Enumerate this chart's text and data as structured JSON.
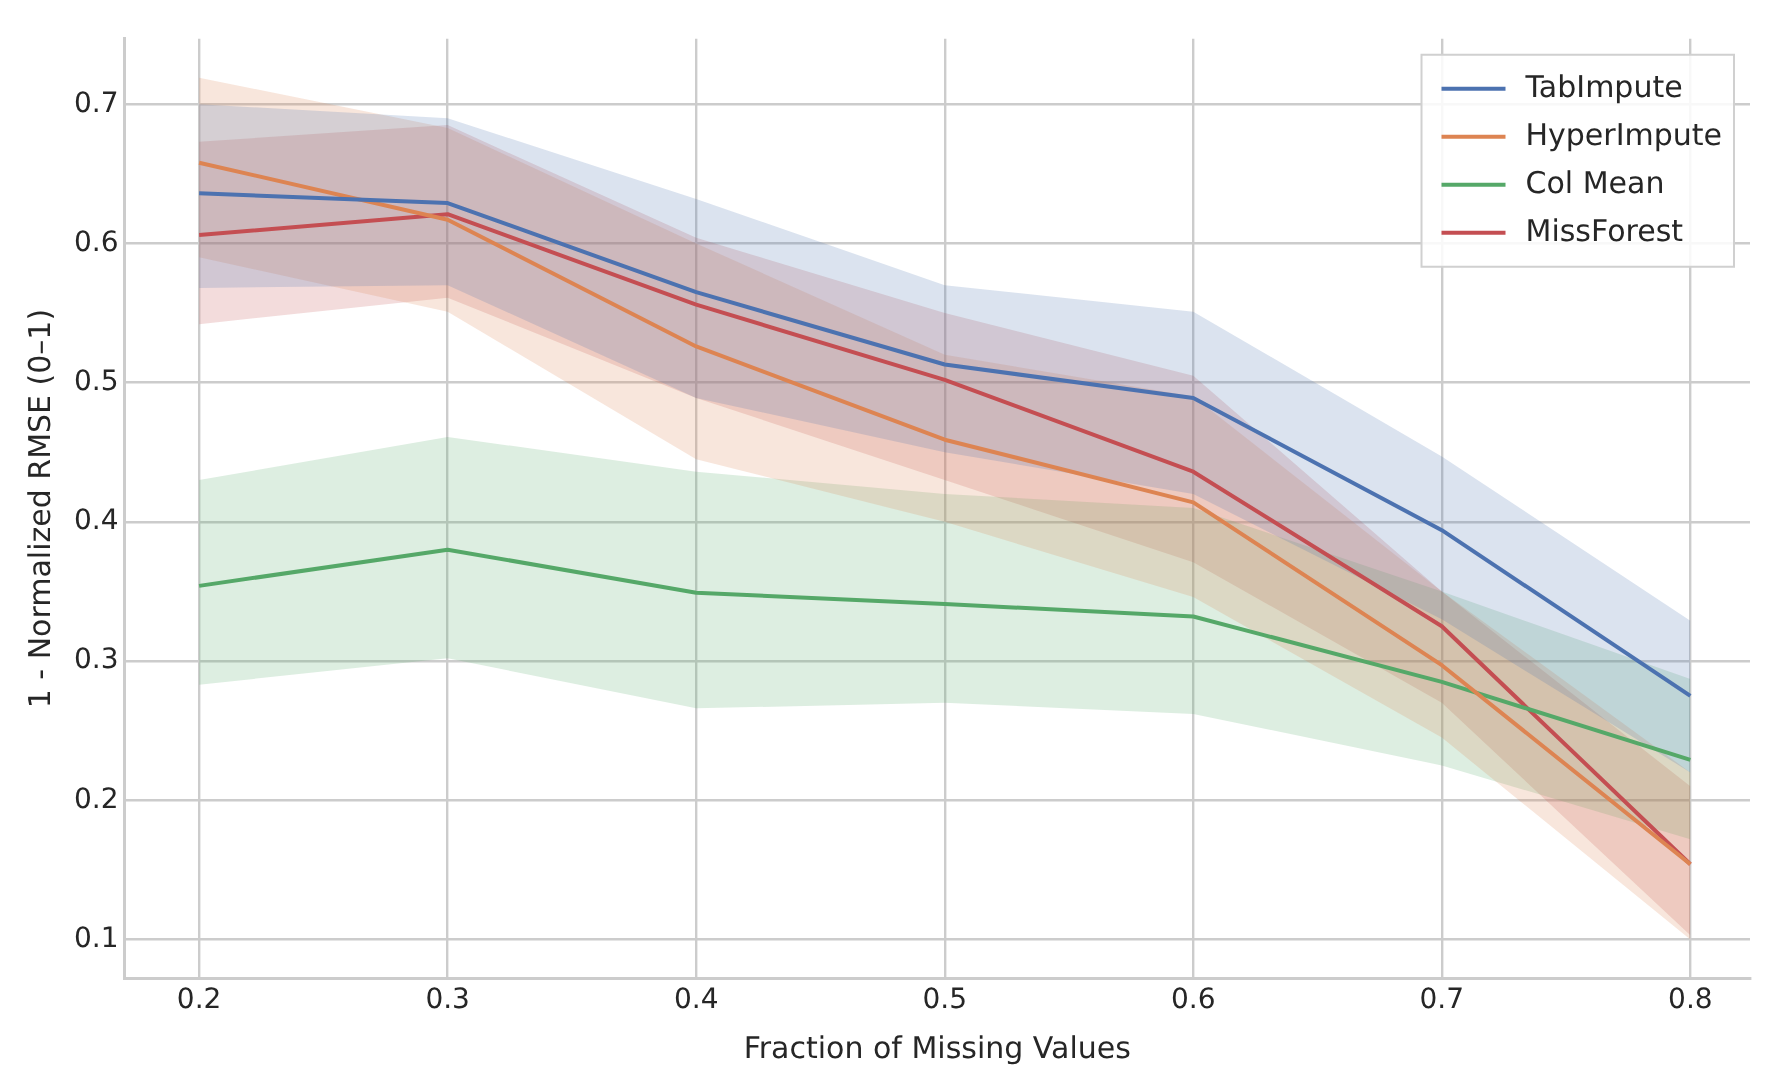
{
  "chart_data": {
    "type": "line",
    "xlabel": "Fraction of Missing Values",
    "ylabel": "1 - Normalized RMSE (0–1)",
    "x": [
      0.2,
      0.3,
      0.4,
      0.5,
      0.6,
      0.7,
      0.8
    ],
    "series": [
      {
        "name": "TabImpute",
        "color": "#4c72b0",
        "values": [
          0.636,
          0.629,
          0.565,
          0.513,
          0.489,
          0.394,
          0.275
        ],
        "lower": [
          0.568,
          0.57,
          0.489,
          0.45,
          0.42,
          0.33,
          0.22
        ],
        "upper": [
          0.7,
          0.69,
          0.632,
          0.57,
          0.551,
          0.447,
          0.329
        ]
      },
      {
        "name": "HyperImpute",
        "color": "#dd8452",
        "values": [
          0.658,
          0.617,
          0.526,
          0.459,
          0.414,
          0.297,
          0.154
        ],
        "lower": [
          0.59,
          0.551,
          0.445,
          0.4,
          0.346,
          0.245,
          0.1
        ],
        "upper": [
          0.719,
          0.683,
          0.6,
          0.52,
          0.49,
          0.35,
          0.22
        ]
      },
      {
        "name": "Col Mean",
        "color": "#55a868",
        "values": [
          0.354,
          0.38,
          0.349,
          0.341,
          0.332,
          0.285,
          0.229
        ],
        "lower": [
          0.283,
          0.302,
          0.266,
          0.27,
          0.262,
          0.225,
          0.172
        ],
        "upper": [
          0.43,
          0.461,
          0.436,
          0.42,
          0.41,
          0.35,
          0.287
        ]
      },
      {
        "name": "MissForest",
        "color": "#c44e52",
        "values": [
          0.606,
          0.621,
          0.556,
          0.502,
          0.436,
          0.325,
          0.154
        ],
        "lower": [
          0.542,
          0.561,
          0.489,
          0.43,
          0.371,
          0.27,
          0.103
        ],
        "upper": [
          0.673,
          0.685,
          0.604,
          0.55,
          0.505,
          0.35,
          0.21
        ]
      }
    ],
    "xlim": [
      0.17,
      0.824
    ],
    "xticks": [
      0.2,
      0.3,
      0.4,
      0.5,
      0.6,
      0.7,
      0.8
    ],
    "ylim": [
      0.072,
      0.747
    ],
    "yticks": [
      0.1,
      0.2,
      0.3,
      0.4,
      0.5,
      0.6,
      0.7
    ],
    "grid": true,
    "legend": "top right",
    "line_style": "solid",
    "marker": "none"
  }
}
